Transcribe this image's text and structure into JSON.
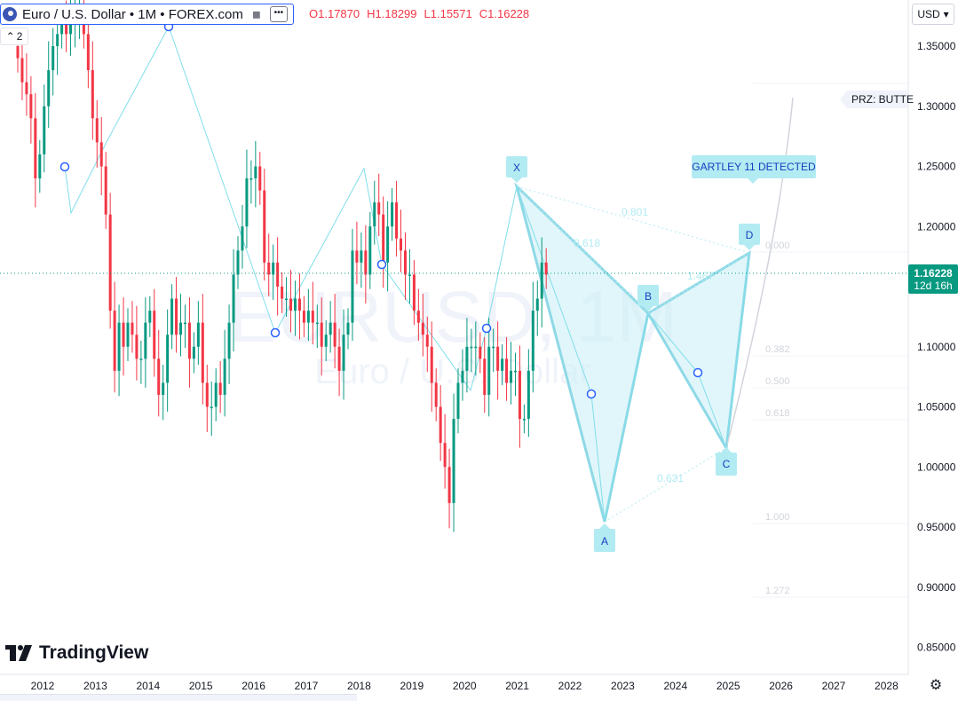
{
  "symbol": {
    "title": "Euro / U.S. Dollar • 1M • FOREX.com",
    "currency": "USD",
    "collapse_label": "2"
  },
  "ohlc": {
    "o_label": "O",
    "o": "1.17870",
    "h_label": "H",
    "h": "1.18299",
    "l_label": "L",
    "l": "1.15571",
    "c_label": "C",
    "c": "1.16228"
  },
  "branding": {
    "logo_text": "TradingView"
  },
  "colors": {
    "up": "#089981",
    "down": "#f23645",
    "pattern_fill": "#b2ebf2",
    "pattern_line": "#80deea",
    "label_bg": "#b2ebf2",
    "label_text": "#1a3cbf",
    "price_label_bg": "#089981"
  },
  "chart_data": {
    "type": "candlestick",
    "title": "",
    "watermark": {
      "symbol": "EURUSD, 1M",
      "name": "Euro / U.S. Dollar"
    },
    "y_axis": {
      "min": 0.83,
      "max": 1.38,
      "ticks": [
        "1.35000",
        "1.30000",
        "1.25000",
        "1.20000",
        "1.15000",
        "1.10000",
        "1.05000",
        "1.00000",
        "0.95000",
        "0.90000",
        "0.85000"
      ]
    },
    "x_axis": {
      "ticks": [
        "2012",
        "2013",
        "2014",
        "2015",
        "2016",
        "2017",
        "2018",
        "2019",
        "2020",
        "2021",
        "2022",
        "2023",
        "2024",
        "2025",
        "2026",
        "2027",
        "2028"
      ]
    },
    "last_price": {
      "value": "1.16228",
      "countdown": "12d 16h"
    },
    "candles_monthly_close": [
      1.34,
      1.32,
      1.31,
      1.29,
      1.24,
      1.26,
      1.3,
      1.33,
      1.35,
      1.36,
      1.37,
      1.36,
      1.37,
      1.38,
      1.38,
      1.36,
      1.33,
      1.29,
      1.27,
      1.25,
      1.21,
      1.13,
      1.08,
      1.12,
      1.1,
      1.12,
      1.11,
      1.09,
      1.09,
      1.12,
      1.13,
      1.09,
      1.06,
      1.07,
      1.11,
      1.14,
      1.11,
      1.12,
      1.12,
      1.09,
      1.1,
      1.12,
      1.07,
      1.05,
      1.05,
      1.07,
      1.06,
      1.09,
      1.12,
      1.16,
      1.18,
      1.2,
      1.24,
      1.24,
      1.25,
      1.23,
      1.17,
      1.16,
      1.17,
      1.15,
      1.14,
      1.14,
      1.13,
      1.14,
      1.13,
      1.12,
      1.13,
      1.12,
      1.12,
      1.1,
      1.11,
      1.12,
      1.1,
      1.08,
      1.11,
      1.12,
      1.18,
      1.17,
      1.18,
      1.16,
      1.2,
      1.22,
      1.21,
      1.17,
      1.2,
      1.22,
      1.19,
      1.18,
      1.16,
      1.16,
      1.13,
      1.12,
      1.11,
      1.1,
      1.07,
      1.05,
      1.02,
      1.0,
      0.97,
      1.04,
      1.07,
      1.08,
      1.1,
      1.1,
      1.1,
      1.09,
      1.06,
      1.1,
      1.1,
      1.08,
      1.09,
      1.07,
      1.08,
      1.08,
      1.04,
      1.04,
      1.08,
      1.13,
      1.14,
      1.17,
      1.16
    ],
    "harmonic_pattern": {
      "name": "GARTLEY 11 DETECTED",
      "points": {
        "X": 1.233,
        "A": 0.954,
        "B": 1.128,
        "C": 1.018,
        "D": 1.178
      },
      "ratios": {
        "XB": "0.618",
        "XD": "0.801",
        "AC": "0.631",
        "BD": "1.467"
      },
      "prz_label": "PRZ: BUTTE",
      "fib_levels": [
        "0.000",
        "0.382",
        "0.500",
        "0.618",
        "1.000",
        "1.272"
      ]
    }
  }
}
